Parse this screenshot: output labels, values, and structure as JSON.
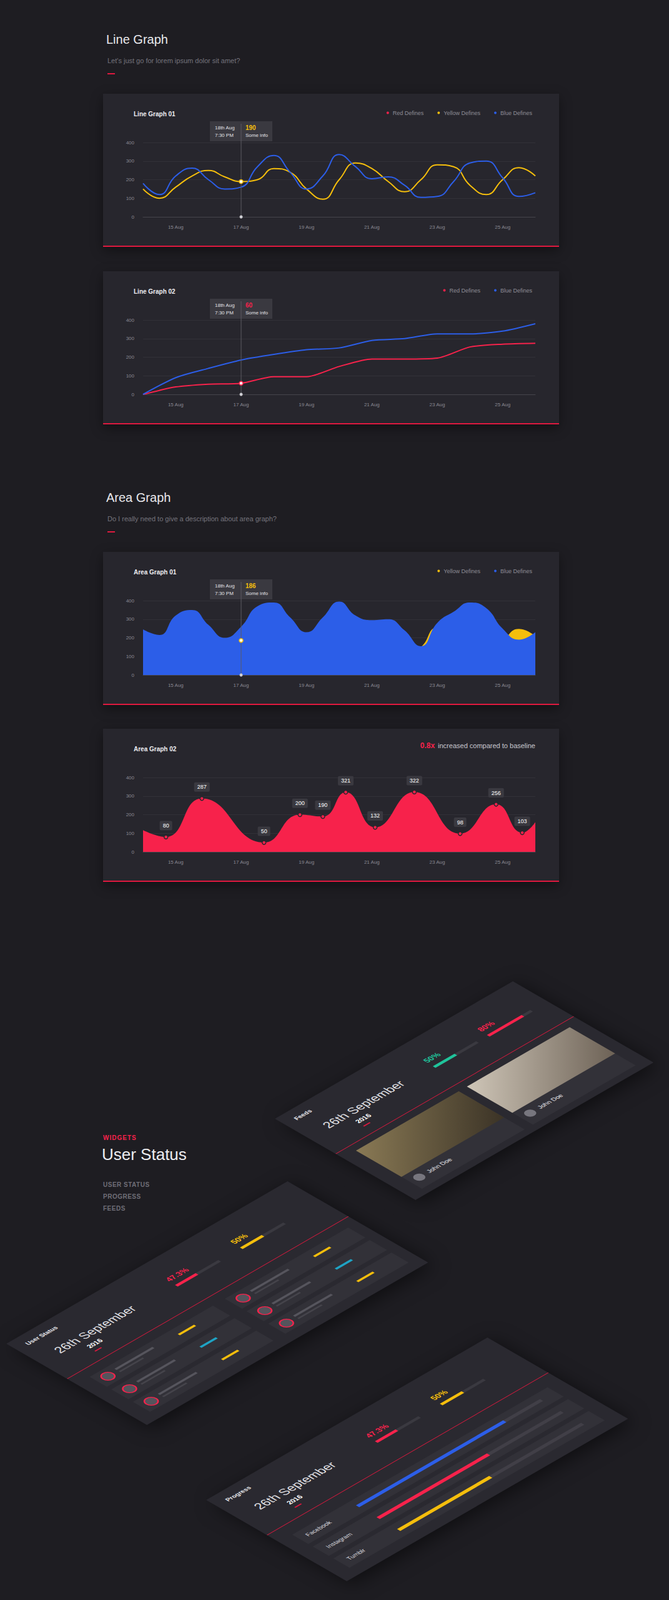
{
  "sections": [
    {
      "title": "Line Graph",
      "subtitle": "Let's just go for lorem ipsum dolor sit amet?"
    },
    {
      "title": "Area Graph",
      "subtitle": "Do I really need to give a description about area graph?"
    }
  ],
  "chart_data": [
    {
      "type": "line",
      "title": "Line Graph 01",
      "line_style": "smooth",
      "x": [
        14,
        14.5,
        15,
        15.5,
        16,
        16.5,
        17,
        17.5,
        18,
        18.5,
        19,
        19.5,
        20,
        20.5,
        21,
        21.5,
        22,
        22.5,
        23,
        23.5,
        24,
        24.5,
        25,
        25.5,
        26
      ],
      "xlim": [
        14,
        26
      ],
      "xticks": [
        {
          "value": 15,
          "label": "15 Aug"
        },
        {
          "value": 17,
          "label": "17 Aug"
        },
        {
          "value": 19,
          "label": "19 Aug"
        },
        {
          "value": 21,
          "label": "21 Aug"
        },
        {
          "value": 23,
          "label": "23 Aug"
        },
        {
          "value": 25,
          "label": "25 Aug"
        }
      ],
      "ylim": [
        0,
        400
      ],
      "yticks": [
        0,
        100,
        200,
        300,
        400
      ],
      "grid": true,
      "legend": "top-right",
      "series": [
        {
          "name": "Red Defines",
          "color": "#f7224b",
          "values": [
            null,
            null,
            null,
            null,
            null,
            null,
            null,
            null,
            null,
            null,
            null,
            null,
            null,
            null,
            null,
            null,
            null,
            null,
            null,
            null,
            null,
            null,
            null,
            null,
            null
          ]
        },
        {
          "name": "Yellow Defines",
          "color": "#f5be0c",
          "values": [
            150,
            100,
            160,
            220,
            250,
            215,
            190,
            200,
            260,
            240,
            150,
            95,
            200,
            290,
            260,
            190,
            135,
            200,
            280,
            270,
            170,
            120,
            200,
            265,
            220
          ]
        },
        {
          "name": "Blue Defines",
          "color": "#2c5ee8",
          "values": [
            180,
            120,
            220,
            262,
            200,
            150,
            160,
            270,
            330,
            240,
            150,
            220,
            335,
            270,
            205,
            215,
            170,
            105,
            110,
            190,
            290,
            300,
            210,
            110,
            130
          ]
        }
      ],
      "annotation": {
        "x": 17,
        "series": "Yellow Defines",
        "date": "18th Aug",
        "time": "7:30 PM",
        "value": 190,
        "text": "Some info"
      }
    },
    {
      "type": "line",
      "title": "Line Graph 02",
      "line_style": "rounded",
      "x": [
        14,
        15,
        16,
        17,
        18,
        19,
        20,
        21,
        22,
        23,
        24,
        25,
        26
      ],
      "xlim": [
        14,
        26
      ],
      "xticks": [
        {
          "value": 15,
          "label": "15 Aug"
        },
        {
          "value": 17,
          "label": "17 Aug"
        },
        {
          "value": 19,
          "label": "19 Aug"
        },
        {
          "value": 21,
          "label": "21 Aug"
        },
        {
          "value": 23,
          "label": "23 Aug"
        },
        {
          "value": 25,
          "label": "25 Aug"
        }
      ],
      "ylim": [
        0,
        400
      ],
      "yticks": [
        0,
        100,
        200,
        300,
        400
      ],
      "grid": true,
      "legend": "top-right",
      "series": [
        {
          "name": "Red Defines",
          "color": "#f7224b",
          "values": [
            0,
            40,
            55,
            60,
            95,
            95,
            150,
            190,
            190,
            195,
            255,
            270,
            275
          ]
        },
        {
          "name": "Blue Defines",
          "color": "#2c5ee8",
          "values": [
            0,
            90,
            140,
            185,
            215,
            240,
            250,
            290,
            300,
            325,
            325,
            340,
            380
          ]
        }
      ],
      "annotation": {
        "x": 17,
        "series": "Red Defines",
        "date": "18th Aug",
        "time": "7:30 PM",
        "value": 60,
        "text": "Some info"
      }
    },
    {
      "type": "area",
      "title": "Area Graph 01",
      "line_style": "smooth",
      "stacked": false,
      "x": [
        14,
        14.5,
        15,
        15.5,
        16,
        16.5,
        17,
        17.5,
        18,
        18.5,
        19,
        19.5,
        20,
        20.5,
        21,
        21.5,
        22,
        22.5,
        23,
        23.5,
        24,
        24.5,
        25,
        25.5,
        26
      ],
      "xlim": [
        14,
        26
      ],
      "xticks": [
        {
          "value": 15,
          "label": "15 Aug"
        },
        {
          "value": 17,
          "label": "17 Aug"
        },
        {
          "value": 19,
          "label": "19 Aug"
        },
        {
          "value": 21,
          "label": "21 Aug"
        },
        {
          "value": 23,
          "label": "23 Aug"
        },
        {
          "value": 25,
          "label": "25 Aug"
        }
      ],
      "ylim": [
        0,
        400
      ],
      "yticks": [
        0,
        100,
        200,
        300,
        400
      ],
      "grid": true,
      "legend": "top-right",
      "series": [
        {
          "name": "Yellow Defines",
          "color": "#f5be0c",
          "values": [
            100,
            95,
            150,
            215,
            225,
            195,
            186,
            200,
            230,
            220,
            150,
            75,
            120,
            230,
            270,
            200,
            105,
            150,
            255,
            240,
            120,
            90,
            180,
            248,
            210
          ]
        },
        {
          "name": "Blue Defines",
          "color": "#2c5ee8",
          "values": [
            245,
            215,
            320,
            350,
            270,
            200,
            260,
            370,
            390,
            310,
            230,
            310,
            395,
            320,
            295,
            300,
            240,
            155,
            280,
            340,
            390,
            360,
            250,
            190,
            230
          ]
        }
      ],
      "annotation": {
        "x": 17,
        "series": "Yellow Defines",
        "date": "18th Aug",
        "time": "7:30 PM",
        "value": 186,
        "text": "Some info"
      }
    },
    {
      "type": "area",
      "title": "Area Graph 02",
      "line_style": "smooth",
      "color": "#f7224b",
      "x": [
        14,
        14.7,
        15.8,
        17.7,
        18.8,
        19.5,
        20.2,
        21.1,
        22.3,
        23.7,
        24.8,
        25.6,
        26
      ],
      "values": [
        117,
        80,
        287,
        50,
        200,
        190,
        321,
        132,
        322,
        98,
        256,
        103,
        160
      ],
      "value_labels": [
        null,
        "80",
        "287",
        "50",
        "200",
        "190",
        "321",
        "132",
        "322",
        "98",
        "256",
        "103",
        null
      ],
      "data_labels": true,
      "xlim": [
        14,
        26
      ],
      "xticks": [
        {
          "value": 15,
          "label": "15 Aug"
        },
        {
          "value": 17,
          "label": "17 Aug"
        },
        {
          "value": 19,
          "label": "19 Aug"
        },
        {
          "value": 21,
          "label": "21 Aug"
        },
        {
          "value": 23,
          "label": "23 Aug"
        },
        {
          "value": 25,
          "label": "25 Aug"
        }
      ],
      "ylim": [
        0,
        400
      ],
      "yticks": [
        0,
        100,
        200,
        300,
        400
      ],
      "grid": true,
      "annotation": {
        "highlight": "0.8x",
        "text": "increased compared to baseline"
      }
    }
  ],
  "widgets": {
    "label": "WIDGETS",
    "title": "User Status",
    "menu": [
      "USER STATUS",
      "PROGRESS",
      "FEEDS"
    ],
    "panels": [
      {
        "kind": "user_status",
        "title": "User Status",
        "date": "26th September",
        "year": "2016",
        "stats": [
          {
            "label": "47.3%",
            "value": 47.3,
            "color": "#f7224b"
          },
          {
            "label": "50%",
            "value": 50,
            "color": "#f5be0c"
          }
        ]
      },
      {
        "kind": "progress",
        "title": "Progress",
        "date": "26th September",
        "year": "2016",
        "stats": [
          {
            "label": "47.3%",
            "value": 47.3,
            "color": "#f7224b"
          },
          {
            "label": "50%",
            "value": 50,
            "color": "#f5be0c"
          }
        ],
        "rows": [
          {
            "label": "Facebook",
            "value": 80,
            "color": "#2c5ee8"
          },
          {
            "label": "Instagram",
            "value": 60,
            "color": "#f7224b"
          },
          {
            "label": "Tumblr",
            "value": 50,
            "color": "#f5be0c"
          }
        ]
      },
      {
        "kind": "feeds",
        "title": "Feeds",
        "date": "26th September",
        "year": "2016",
        "stats": [
          {
            "label": "50%",
            "value": 50,
            "color": "#1fc49b"
          },
          {
            "label": "80%",
            "value": 80,
            "color": "#f7224b"
          }
        ],
        "posts": [
          {
            "author": "John Doe"
          },
          {
            "author": "John Doe"
          }
        ]
      }
    ]
  }
}
